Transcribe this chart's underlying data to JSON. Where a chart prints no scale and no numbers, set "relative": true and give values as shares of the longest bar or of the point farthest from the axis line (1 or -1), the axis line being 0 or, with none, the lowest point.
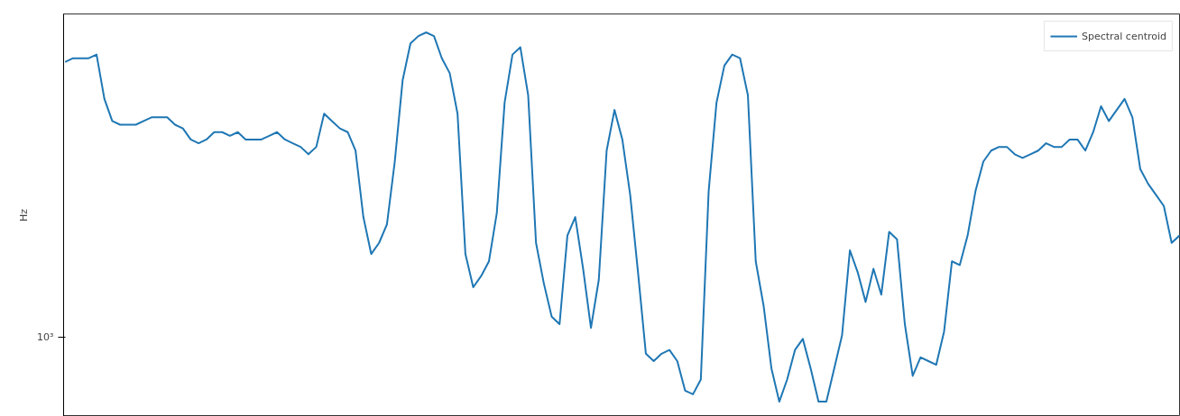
{
  "chart_data": {
    "type": "line",
    "ylabel": "Hz",
    "relative": true,
    "grid": false,
    "legend": "top right",
    "annotations": [
      "10³"
    ],
    "categories": [
      null,
      null,
      null,
      null,
      null,
      null,
      null,
      null,
      null,
      null,
      null,
      null,
      null,
      null,
      null,
      null,
      null,
      null,
      null,
      null,
      null,
      null,
      null,
      null,
      null,
      null,
      null,
      null,
      null,
      null,
      null,
      null,
      null,
      null,
      null,
      null,
      null,
      null,
      null,
      null,
      null,
      null,
      null,
      null,
      null,
      null,
      null,
      null,
      null,
      null,
      null,
      null,
      null,
      null,
      null,
      null,
      null,
      null,
      null,
      null,
      null,
      null,
      null,
      null,
      null,
      null,
      null,
      null,
      null,
      null,
      null,
      null,
      null,
      null,
      null,
      null,
      null,
      null,
      null,
      null,
      null,
      null,
      null,
      null,
      null,
      null,
      null,
      null,
      null,
      null,
      null,
      null,
      null,
      null,
      null,
      null,
      null,
      null,
      null,
      null,
      null,
      null,
      null,
      null,
      null,
      null,
      null,
      null,
      null,
      null,
      null,
      null,
      null,
      null,
      null,
      null,
      null,
      null,
      null,
      null,
      null,
      null,
      null,
      null,
      null,
      null,
      null,
      null,
      null,
      null,
      null,
      null,
      null,
      null,
      null,
      null,
      null,
      null,
      null,
      null,
      null,
      null,
      null
    ],
    "series": [
      {
        "name": "Spectral centroid",
        "color": "#1f77b4",
        "values": [
          0.92,
          0.93,
          0.93,
          0.93,
          0.94,
          0.82,
          0.76,
          0.75,
          0.75,
          0.75,
          0.76,
          0.77,
          0.77,
          0.77,
          0.75,
          0.74,
          0.71,
          0.7,
          0.71,
          0.73,
          0.73,
          0.72,
          0.73,
          0.71,
          0.71,
          0.71,
          0.72,
          0.73,
          0.71,
          0.7,
          0.69,
          0.67,
          0.69,
          0.78,
          0.76,
          0.74,
          0.73,
          0.68,
          0.5,
          0.4,
          0.43,
          0.48,
          0.65,
          0.87,
          0.97,
          0.99,
          1,
          0.99,
          0.93,
          0.89,
          0.78,
          0.4,
          0.31,
          0.34,
          0.38,
          0.51,
          0.81,
          0.94,
          0.96,
          0.83,
          0.43,
          0.32,
          0.23,
          0.21,
          0.45,
          0.5,
          0.36,
          0.2,
          0.33,
          0.68,
          0.79,
          0.71,
          0.56,
          0.35,
          0.13,
          0.11,
          0.13,
          0.14,
          0.11,
          0.03,
          0.02,
          0.06,
          0.57,
          0.81,
          0.91,
          0.94,
          0.93,
          0.83,
          0.38,
          0.26,
          0.09,
          0,
          0.06,
          0.14,
          0.17,
          0.09,
          0,
          0,
          0.09,
          0.18,
          0.41,
          0.35,
          0.27,
          0.36,
          0.29,
          0.46,
          0.44,
          0.21,
          0.07,
          0.12,
          0.11,
          0.1,
          0.19,
          0.38,
          0.37,
          0.45,
          0.57,
          0.65,
          0.68,
          0.69,
          0.69,
          0.67,
          0.66,
          0.67,
          0.68,
          0.7,
          0.69,
          0.69,
          0.71,
          0.71,
          0.68,
          0.73,
          0.8,
          0.76,
          0.79,
          0.82,
          0.77,
          0.63,
          0.59,
          0.56,
          0.53,
          0.43,
          0.45
        ]
      }
    ]
  }
}
